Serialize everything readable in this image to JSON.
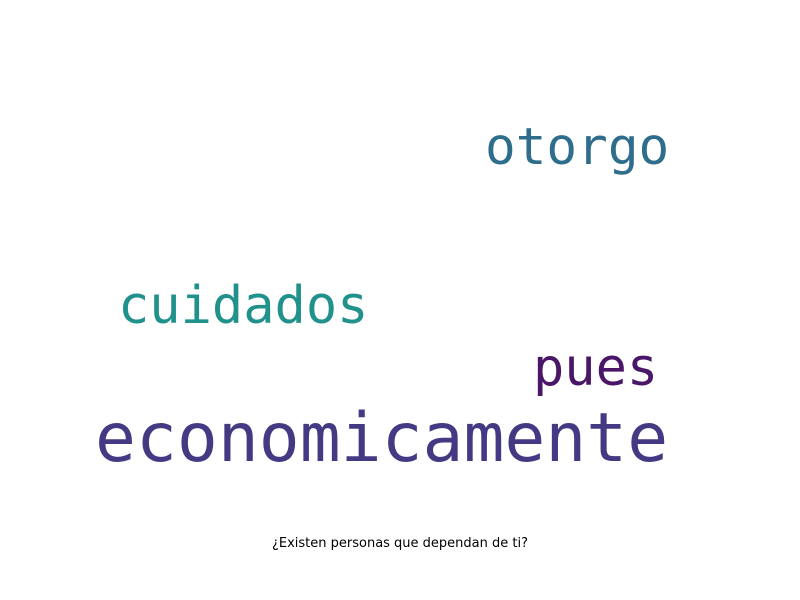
{
  "words": [
    {
      "text": "otorgo",
      "color": "#2f6d8c"
    },
    {
      "text": "cuidados",
      "color": "#21918c"
    },
    {
      "text": "pues",
      "color": "#4a1668"
    },
    {
      "text": "economicamente",
      "color": "#433a83"
    }
  ],
  "caption": "¿Existen personas que dependan de ti?"
}
